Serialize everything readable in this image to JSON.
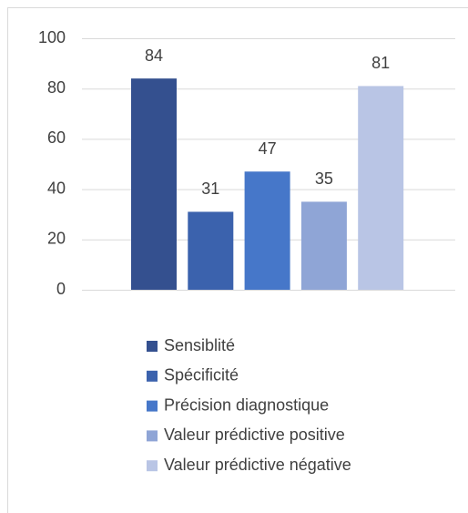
{
  "chart_data": {
    "type": "bar",
    "series": [
      {
        "name": "Sensiblité",
        "color": "#34508f",
        "values": [
          84
        ]
      },
      {
        "name": "Spécificité",
        "color": "#3b62ad",
        "values": [
          31
        ]
      },
      {
        "name": "Précision diagnostique",
        "color": "#4677c9",
        "values": [
          47
        ]
      },
      {
        "name": "Valeur prédictive positive",
        "color": "#8fa5d6",
        "values": [
          35
        ]
      },
      {
        "name": "Valeur prédictive négative",
        "color": "#b9c5e5",
        "values": [
          81
        ]
      }
    ],
    "ylim": [
      0,
      100
    ],
    "yticks": [
      0,
      20,
      40,
      60,
      80,
      100
    ],
    "grid": true,
    "legend": "bottom"
  }
}
